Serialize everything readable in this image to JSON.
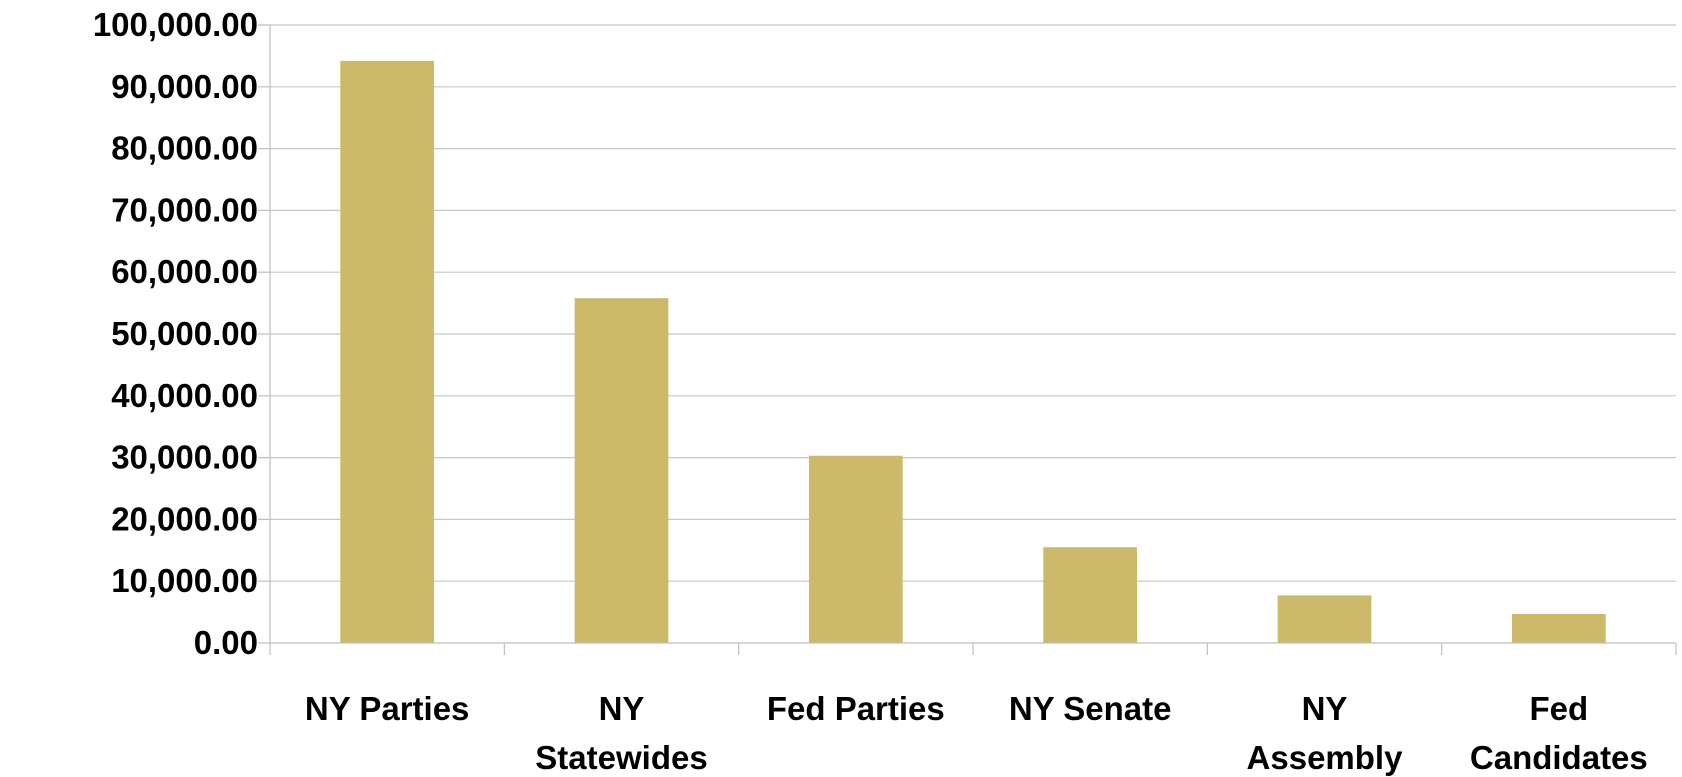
{
  "chart_data": {
    "type": "bar",
    "categories": [
      [
        "NY Parties"
      ],
      [
        "NY",
        "Statewides"
      ],
      [
        "Fed Parties"
      ],
      [
        "NY Senate"
      ],
      [
        "NY",
        "Assembly"
      ],
      [
        "Fed",
        "Candidates"
      ]
    ],
    "values": [
      94200,
      55800,
      30300,
      15500,
      7700,
      4700
    ],
    "ylim": [
      0,
      100000
    ],
    "yticks": [
      0,
      10000,
      20000,
      30000,
      40000,
      50000,
      60000,
      70000,
      80000,
      90000,
      100000
    ],
    "ytick_labels": [
      "0.00",
      "10,000.00",
      "20,000.00",
      "30,000.00",
      "40,000.00",
      "50,000.00",
      "60,000.00",
      "70,000.00",
      "80,000.00",
      "90,000.00",
      "100,000.00"
    ],
    "grid": true,
    "legend": "none",
    "bar_color": "#CDB96A",
    "grid_color": "#C8C8C8",
    "axis_color": "#BFBFBF"
  }
}
